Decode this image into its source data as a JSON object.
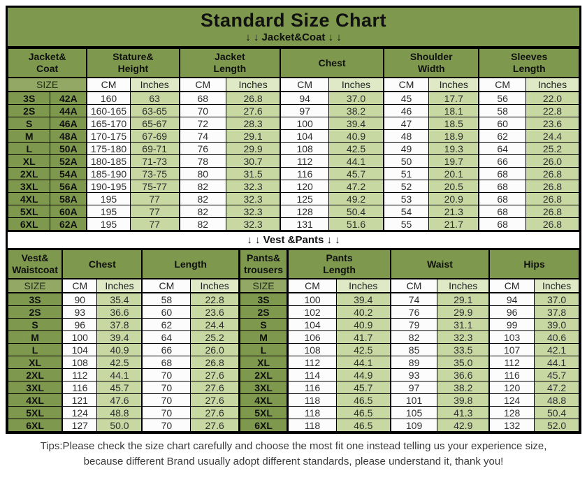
{
  "title": "Standard Size Chart",
  "bands": {
    "jacket": "↓ ↓  Jacket&Coat ↓ ↓",
    "vest": "↓ ↓  Vest &Pants ↓ ↓"
  },
  "labels": {
    "size": "SIZE",
    "cm": "CM",
    "inches": "Inches"
  },
  "colors": {
    "olive_header": "#7e994d",
    "olive_size_label": "#93a864",
    "pale_green_cell": "#c7d8a3",
    "pale_green_header": "#dfe9c6",
    "white_cell": "#fcfcfc",
    "border": "#000000"
  },
  "tips": {
    "line1": "Tips:Please check the size chart carefully and choose the most fit one instead telling us your experience size,",
    "line2": "because different Brand usually adopt different standards, please understand it, thank you!"
  },
  "chart_data": [
    {
      "type": "table",
      "title": "Jacket&Coat",
      "groups": [
        {
          "label": "Jacket&\nCoat",
          "span": 2
        },
        {
          "label": "Stature&\nHeight",
          "span": 2
        },
        {
          "label": "Jacket\nLength",
          "span": 2
        },
        {
          "label": "Chest",
          "span": 2
        },
        {
          "label": "Shoulder\nWidth",
          "span": 2
        },
        {
          "label": "Sleeves\nLength",
          "span": 2
        }
      ],
      "unit_row": [
        "SIZE",
        "CM",
        "Inches",
        "CM",
        "Inches",
        "CM",
        "Inches",
        "CM",
        "Inches",
        "CM",
        "Inches"
      ],
      "col_types": [
        "size",
        "size",
        "cm",
        "in",
        "cm",
        "in",
        "cm",
        "in",
        "cm",
        "in",
        "cm",
        "in"
      ],
      "rows": [
        [
          "3S",
          "42A",
          "160",
          "63",
          "68",
          "26.8",
          "94",
          "37.0",
          "45",
          "17.7",
          "56",
          "22.0"
        ],
        [
          "2S",
          "44A",
          "160-165",
          "63-65",
          "70",
          "27.6",
          "97",
          "38.2",
          "46",
          "18.1",
          "58",
          "22.8"
        ],
        [
          "S",
          "46A",
          "165-170",
          "65-67",
          "72",
          "28.3",
          "100",
          "39.4",
          "47",
          "18.5",
          "60",
          "23.6"
        ],
        [
          "M",
          "48A",
          "170-175",
          "67-69",
          "74",
          "29.1",
          "104",
          "40.9",
          "48",
          "18.9",
          "62",
          "24.4"
        ],
        [
          "L",
          "50A",
          "175-180",
          "69-71",
          "76",
          "29.9",
          "108",
          "42.5",
          "49",
          "19.3",
          "64",
          "25.2"
        ],
        [
          "XL",
          "52A",
          "180-185",
          "71-73",
          "78",
          "30.7",
          "112",
          "44.1",
          "50",
          "19.7",
          "66",
          "26.0"
        ],
        [
          "2XL",
          "54A",
          "185-190",
          "73-75",
          "80",
          "31.5",
          "116",
          "45.7",
          "51",
          "20.1",
          "68",
          "26.8"
        ],
        [
          "3XL",
          "56A",
          "190-195",
          "75-77",
          "82",
          "32.3",
          "120",
          "47.2",
          "52",
          "20.5",
          "68",
          "26.8"
        ],
        [
          "4XL",
          "58A",
          "195",
          "77",
          "82",
          "32.3",
          "125",
          "49.2",
          "53",
          "20.9",
          "68",
          "26.8"
        ],
        [
          "5XL",
          "60A",
          "195",
          "77",
          "82",
          "32.3",
          "128",
          "50.4",
          "54",
          "21.3",
          "68",
          "26.8"
        ],
        [
          "6XL",
          "62A",
          "195",
          "77",
          "82",
          "32.3",
          "131",
          "51.6",
          "55",
          "21.7",
          "68",
          "26.8"
        ]
      ]
    },
    {
      "type": "table",
      "title": "Vest &Pants",
      "groups": [
        {
          "label": "Vest&\nWaistcoat",
          "span": 1
        },
        {
          "label": "Chest",
          "span": 2
        },
        {
          "label": "Length",
          "span": 2
        },
        {
          "label": "Pants&\ntrousers",
          "span": 1
        },
        {
          "label": "Pants\nLength",
          "span": 2
        },
        {
          "label": "Waist",
          "span": 2
        },
        {
          "label": "Hips",
          "span": 2
        }
      ],
      "unit_row": [
        "SIZE",
        "CM",
        "Inches",
        "CM",
        "Inches",
        "SIZE",
        "CM",
        "Inches",
        "CM",
        "Inches",
        "CM",
        "Inches"
      ],
      "col_types": [
        "size",
        "cm",
        "in",
        "cm",
        "in",
        "size",
        "cm",
        "in",
        "cm",
        "in",
        "cm",
        "in"
      ],
      "rows": [
        [
          "3S",
          "90",
          "35.4",
          "58",
          "22.8",
          "3S",
          "100",
          "39.4",
          "74",
          "29.1",
          "94",
          "37.0"
        ],
        [
          "2S",
          "93",
          "36.6",
          "60",
          "23.6",
          "2S",
          "102",
          "40.2",
          "76",
          "29.9",
          "96",
          "37.8"
        ],
        [
          "S",
          "96",
          "37.8",
          "62",
          "24.4",
          "S",
          "104",
          "40.9",
          "79",
          "31.1",
          "99",
          "39.0"
        ],
        [
          "M",
          "100",
          "39.4",
          "64",
          "25.2",
          "M",
          "106",
          "41.7",
          "82",
          "32.3",
          "103",
          "40.6"
        ],
        [
          "L",
          "104",
          "40.9",
          "66",
          "26.0",
          "L",
          "108",
          "42.5",
          "85",
          "33.5",
          "107",
          "42.1"
        ],
        [
          "XL",
          "108",
          "42.5",
          "68",
          "26.8",
          "XL",
          "112",
          "44.1",
          "89",
          "35.0",
          "112",
          "44.1"
        ],
        [
          "2XL",
          "112",
          "44.1",
          "70",
          "27.6",
          "2XL",
          "114",
          "44.9",
          "93",
          "36.6",
          "116",
          "45.7"
        ],
        [
          "3XL",
          "116",
          "45.7",
          "70",
          "27.6",
          "3XL",
          "116",
          "45.7",
          "97",
          "38.2",
          "120",
          "47.2"
        ],
        [
          "4XL",
          "121",
          "47.6",
          "70",
          "27.6",
          "4XL",
          "118",
          "46.5",
          "101",
          "39.8",
          "124",
          "48.8"
        ],
        [
          "5XL",
          "124",
          "48.8",
          "70",
          "27.6",
          "5XL",
          "118",
          "46.5",
          "105",
          "41.3",
          "128",
          "50.4"
        ],
        [
          "6XL",
          "127",
          "50.0",
          "70",
          "27.6",
          "6XL",
          "118",
          "46.5",
          "109",
          "42.9",
          "132",
          "52.0"
        ]
      ]
    }
  ]
}
